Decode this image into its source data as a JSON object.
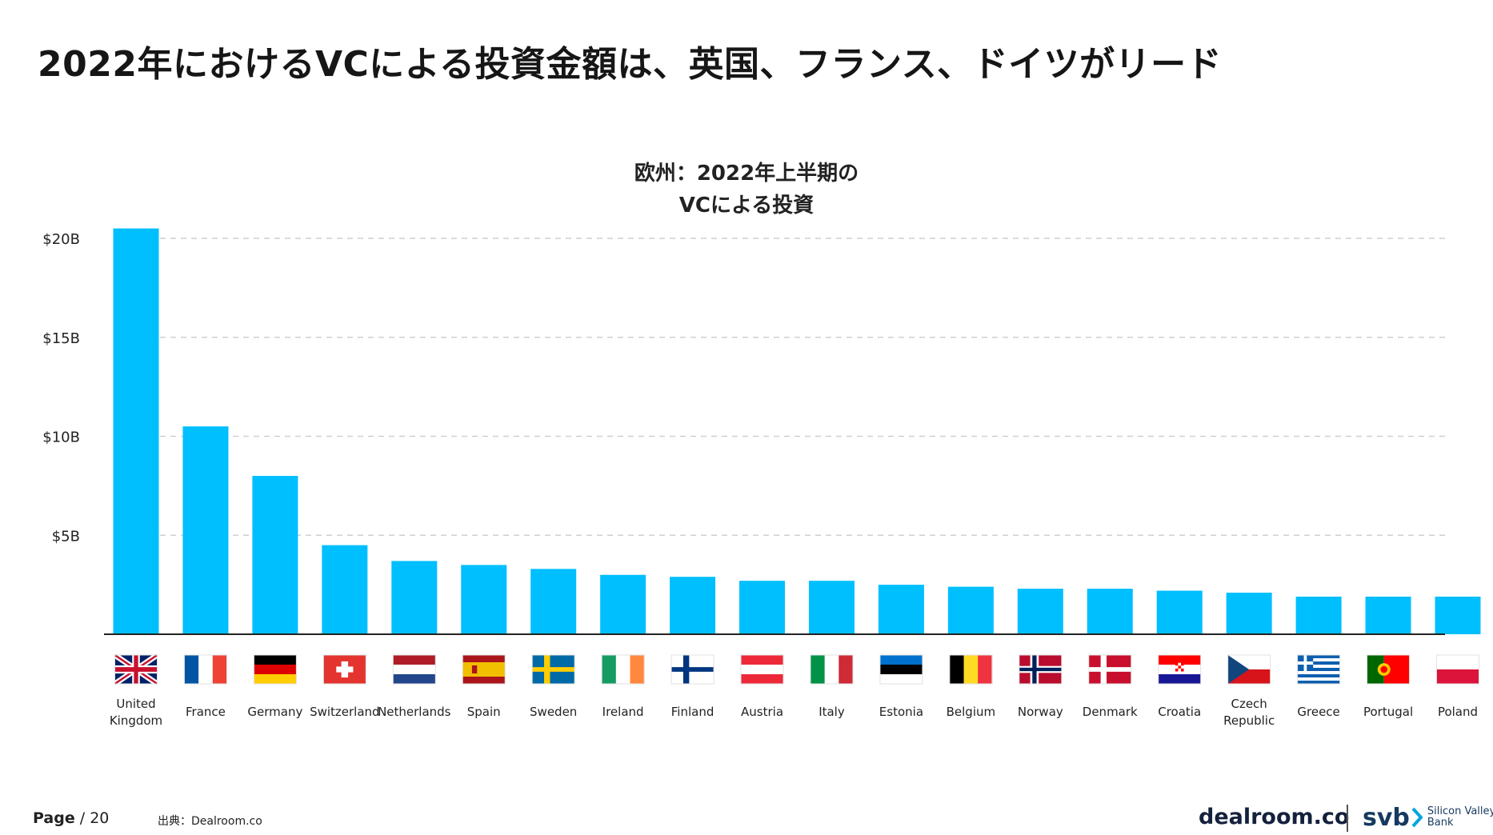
{
  "headline": "2022年におけるVCによる投資金額は、英国、フランス、ドイツがリード",
  "footer": {
    "page_label": "Page",
    "page_number": "/ 20",
    "source": "出典：Dealroom.co",
    "brand_dealroom": "dealroom.co",
    "brand_svb": "svb",
    "brand_svb_line1": "Silicon Valley",
    "brand_svb_line2": "Bank"
  },
  "colors": {
    "bar": "#00BFFF",
    "grid": "#cfcfcf",
    "baseline": "#222222"
  },
  "chart_data": {
    "type": "bar",
    "title_lines": [
      "欧州：2022年上半期の",
      "VCによる投資"
    ],
    "ylim": [
      0,
      20
    ],
    "y_ticks": [
      {
        "value": 5,
        "label": "$5B"
      },
      {
        "value": 10,
        "label": "$10B"
      },
      {
        "value": 15,
        "label": "$15B"
      },
      {
        "value": 20,
        "label": "$20B"
      }
    ],
    "grid": "horizontal-dashed",
    "unit": "$B",
    "categories": [
      {
        "label": [
          "United",
          "Kingdom"
        ],
        "flag": "gb"
      },
      {
        "label": [
          "France"
        ],
        "flag": "fr"
      },
      {
        "label": [
          "Germany"
        ],
        "flag": "de"
      },
      {
        "label": [
          "Switzerland"
        ],
        "flag": "ch"
      },
      {
        "label": [
          "Netherlands"
        ],
        "flag": "nl"
      },
      {
        "label": [
          "Spain"
        ],
        "flag": "es"
      },
      {
        "label": [
          "Sweden"
        ],
        "flag": "se"
      },
      {
        "label": [
          "Ireland"
        ],
        "flag": "ie"
      },
      {
        "label": [
          "Finland"
        ],
        "flag": "fi"
      },
      {
        "label": [
          "Austria"
        ],
        "flag": "at"
      },
      {
        "label": [
          "Italy"
        ],
        "flag": "it"
      },
      {
        "label": [
          "Estonia"
        ],
        "flag": "ee"
      },
      {
        "label": [
          "Belgium"
        ],
        "flag": "be"
      },
      {
        "label": [
          "Norway"
        ],
        "flag": "no"
      },
      {
        "label": [
          "Denmark"
        ],
        "flag": "dk"
      },
      {
        "label": [
          "Croatia"
        ],
        "flag": "hr"
      },
      {
        "label": [
          "Czech",
          "Republic"
        ],
        "flag": "cz"
      },
      {
        "label": [
          "Greece"
        ],
        "flag": "gr"
      },
      {
        "label": [
          "Portugal"
        ],
        "flag": "pt"
      },
      {
        "label": [
          "Poland"
        ],
        "flag": "pl"
      }
    ],
    "values": [
      20.5,
      10.5,
      8.0,
      4.5,
      3.7,
      3.5,
      3.3,
      3.0,
      2.9,
      2.7,
      2.7,
      2.5,
      2.4,
      2.3,
      2.3,
      2.2,
      2.1,
      1.9,
      1.9,
      1.9
    ]
  }
}
